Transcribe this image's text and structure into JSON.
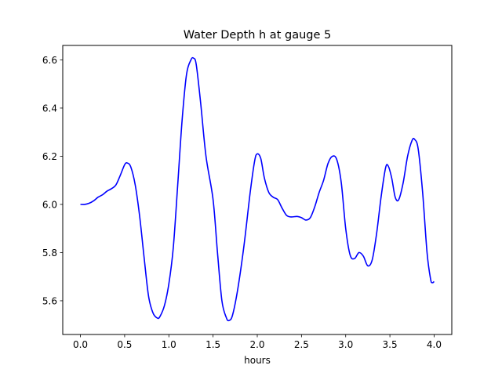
{
  "chart_data": {
    "type": "line",
    "title": "Water Depth h at gauge 5",
    "xlabel": "hours",
    "ylabel": "",
    "xlim": [
      -0.2,
      4.2
    ],
    "ylim": [
      5.46,
      6.66
    ],
    "x_ticks": [
      0.0,
      0.5,
      1.0,
      1.5,
      2.0,
      2.5,
      3.0,
      3.5,
      4.0
    ],
    "x_tick_labels": [
      "0.0",
      "0.5",
      "1.0",
      "1.5",
      "2.0",
      "2.5",
      "3.0",
      "3.5",
      "4.0"
    ],
    "y_ticks": [
      5.6,
      5.8,
      6.0,
      6.2,
      6.4,
      6.6
    ],
    "y_tick_labels": [
      "5.6",
      "5.8",
      "6.0",
      "6.2",
      "6.4",
      "6.6"
    ],
    "grid": false,
    "legend": "none",
    "series": [
      {
        "color": "#0000ff",
        "points": [
          [
            0.0,
            6.0
          ],
          [
            0.05,
            6.0
          ],
          [
            0.1,
            6.005
          ],
          [
            0.15,
            6.015
          ],
          [
            0.2,
            6.03
          ],
          [
            0.25,
            6.04
          ],
          [
            0.3,
            6.055
          ],
          [
            0.35,
            6.065
          ],
          [
            0.4,
            6.08
          ],
          [
            0.45,
            6.12
          ],
          [
            0.5,
            6.165
          ],
          [
            0.53,
            6.172
          ],
          [
            0.57,
            6.155
          ],
          [
            0.62,
            6.08
          ],
          [
            0.67,
            5.95
          ],
          [
            0.72,
            5.78
          ],
          [
            0.77,
            5.62
          ],
          [
            0.82,
            5.55
          ],
          [
            0.87,
            5.528
          ],
          [
            0.9,
            5.535
          ],
          [
            0.95,
            5.58
          ],
          [
            1.0,
            5.67
          ],
          [
            1.05,
            5.82
          ],
          [
            1.1,
            6.08
          ],
          [
            1.15,
            6.35
          ],
          [
            1.2,
            6.54
          ],
          [
            1.25,
            6.6
          ],
          [
            1.28,
            6.607
          ],
          [
            1.31,
            6.58
          ],
          [
            1.36,
            6.42
          ],
          [
            1.42,
            6.2
          ],
          [
            1.5,
            6.02
          ],
          [
            1.55,
            5.8
          ],
          [
            1.6,
            5.6
          ],
          [
            1.65,
            5.53
          ],
          [
            1.68,
            5.518
          ],
          [
            1.72,
            5.54
          ],
          [
            1.78,
            5.65
          ],
          [
            1.85,
            5.83
          ],
          [
            1.92,
            6.05
          ],
          [
            1.97,
            6.18
          ],
          [
            2.0,
            6.21
          ],
          [
            2.04,
            6.19
          ],
          [
            2.08,
            6.11
          ],
          [
            2.13,
            6.05
          ],
          [
            2.18,
            6.03
          ],
          [
            2.23,
            6.02
          ],
          [
            2.28,
            5.985
          ],
          [
            2.33,
            5.955
          ],
          [
            2.38,
            5.948
          ],
          [
            2.45,
            5.95
          ],
          [
            2.5,
            5.945
          ],
          [
            2.55,
            5.935
          ],
          [
            2.6,
            5.945
          ],
          [
            2.65,
            5.99
          ],
          [
            2.7,
            6.05
          ],
          [
            2.75,
            6.1
          ],
          [
            2.8,
            6.17
          ],
          [
            2.85,
            6.2
          ],
          [
            2.9,
            6.185
          ],
          [
            2.95,
            6.09
          ],
          [
            3.0,
            5.9
          ],
          [
            3.05,
            5.79
          ],
          [
            3.1,
            5.775
          ],
          [
            3.15,
            5.8
          ],
          [
            3.2,
            5.785
          ],
          [
            3.25,
            5.745
          ],
          [
            3.3,
            5.77
          ],
          [
            3.35,
            5.88
          ],
          [
            3.4,
            6.03
          ],
          [
            3.45,
            6.15
          ],
          [
            3.48,
            6.16
          ],
          [
            3.52,
            6.11
          ],
          [
            3.56,
            6.03
          ],
          [
            3.6,
            6.02
          ],
          [
            3.65,
            6.09
          ],
          [
            3.7,
            6.2
          ],
          [
            3.75,
            6.265
          ],
          [
            3.78,
            6.27
          ],
          [
            3.82,
            6.23
          ],
          [
            3.87,
            6.05
          ],
          [
            3.92,
            5.8
          ],
          [
            3.96,
            5.69
          ],
          [
            3.98,
            5.675
          ],
          [
            4.0,
            5.68
          ]
        ]
      }
    ]
  }
}
